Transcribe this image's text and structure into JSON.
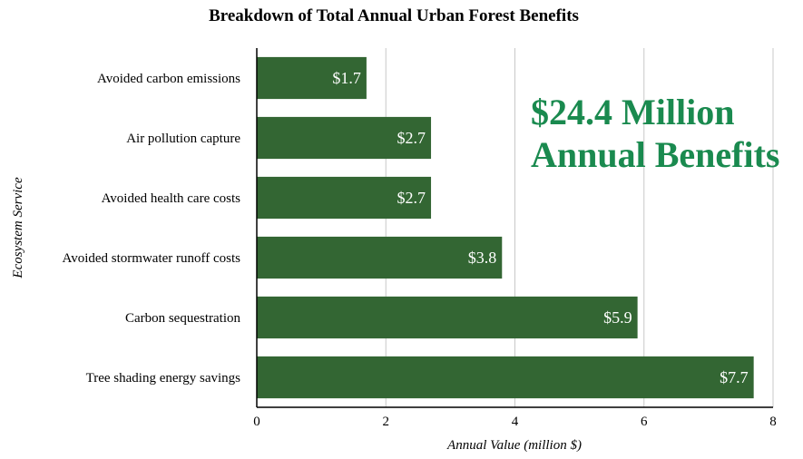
{
  "chart_data": {
    "type": "bar",
    "orientation": "horizontal",
    "title": "Breakdown of Total Annual Urban Forest Benefits",
    "xlabel": "Annual Value (million $)",
    "ylabel": "Ecosystem Service",
    "xlim": [
      0,
      8
    ],
    "xticks": [
      "0",
      "2",
      "4",
      "6",
      "8"
    ],
    "grid": true,
    "categories": [
      "Avoided carbon emissions",
      "Air pollution capture",
      "Avoided health care costs",
      "Avoided stormwater runoff costs",
      "Carbon sequestration",
      "Tree shading energy savings"
    ],
    "values": [
      1.7,
      2.7,
      2.7,
      3.8,
      5.9,
      7.7
    ],
    "data_labels": [
      "$1.7",
      "$2.7",
      "$2.7",
      "$3.8",
      "$5.9",
      "$7.7"
    ],
    "bar_color": "#336633",
    "annotation": {
      "lines": [
        "$24.4 Million",
        "Annual Benefits"
      ],
      "color": "#1a8a4f"
    }
  }
}
